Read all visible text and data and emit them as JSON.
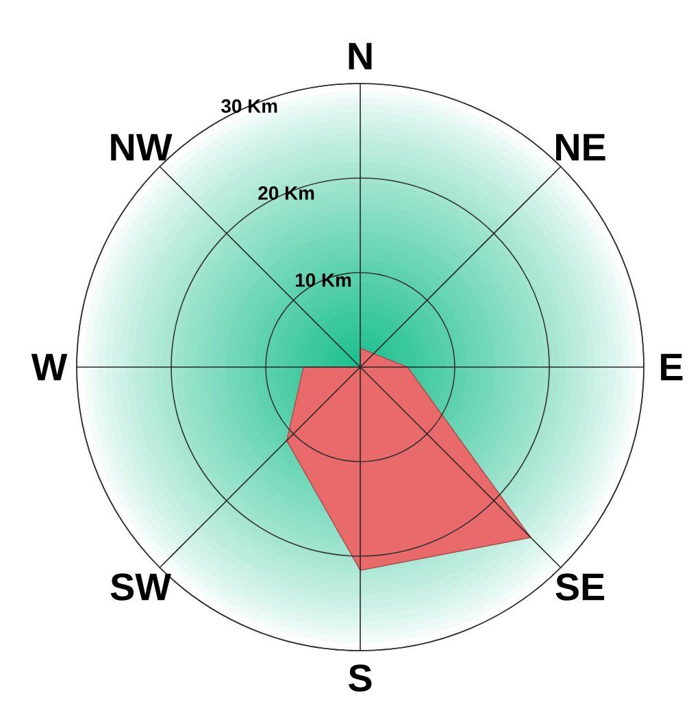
{
  "chart_data": {
    "type": "radar",
    "categories": [
      "N",
      "NE",
      "E",
      "SE",
      "S",
      "SW",
      "W",
      "NW"
    ],
    "series": [
      {
        "color": "#e86a6a",
        "values": [
          2,
          2,
          5,
          25.5,
          21.5,
          11,
          6,
          0
        ]
      }
    ],
    "ylim": [
      0,
      30
    ],
    "yticks": [
      {
        "value": 10,
        "label": "10 Km"
      },
      {
        "value": 20,
        "label": "20 Km"
      },
      {
        "value": 30,
        "label": "30 Km"
      }
    ],
    "grid": true
  }
}
